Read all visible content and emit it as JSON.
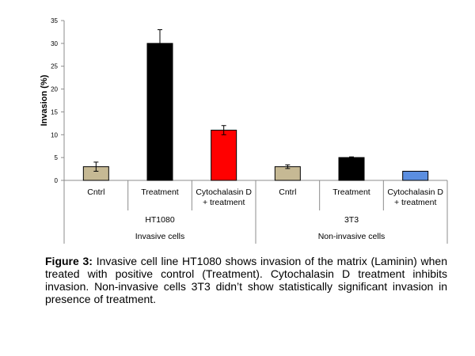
{
  "chart_data": {
    "type": "bar",
    "ylabel": "Invasion (%)",
    "ylim": [
      0,
      35
    ],
    "yticks": [
      0,
      5,
      10,
      15,
      20,
      25,
      30,
      35
    ],
    "categories": [
      "Cntrl",
      "Treatment",
      "Cytochalasin D\n+ treatment",
      "Cntrl",
      "Treatment",
      "Cytochalasin D\n+ treatment"
    ],
    "values": [
      3,
      30,
      11,
      3,
      5,
      2
    ],
    "errors": [
      1,
      3,
      1,
      0.4,
      0.15,
      null
    ],
    "colors": [
      "#c6b994",
      "#000000",
      "#ff0000",
      "#c6b994",
      "#000000",
      "#5b8ee0"
    ],
    "groups": [
      {
        "label": "HT1080",
        "category": "Invasive cells",
        "span": [
          0,
          2
        ]
      },
      {
        "label": "3T3",
        "category": "Non-invasive cells",
        "span": [
          3,
          5
        ]
      }
    ]
  },
  "caption": {
    "label": "Figure 3:",
    "text": "Invasive cell line HT1080 shows invasion of the matrix (Laminin) when treated with positive control (Treatment). Cytochalasin D treatment inhibits invasion. Non-invasive cells 3T3 didn’t show statistically significant invasion in presence of treatment."
  }
}
